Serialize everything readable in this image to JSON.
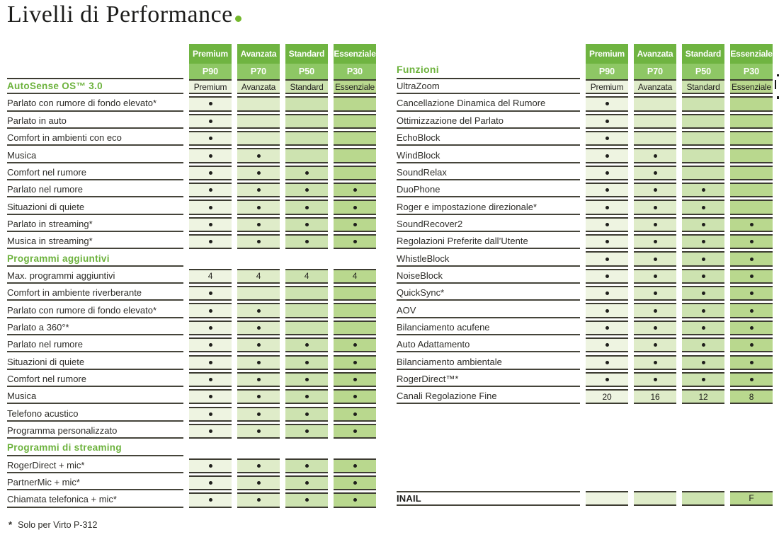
{
  "title": {
    "text": "Livelli di Performance"
  },
  "tiers": [
    {
      "name": "Premium",
      "code": "P90"
    },
    {
      "name": "Avanzata",
      "code": "P70"
    },
    {
      "name": "Standard",
      "code": "P50"
    },
    {
      "name": "Essenziale",
      "code": "P30"
    }
  ],
  "colors": {
    "accent": "#6cb23c",
    "brand_dot": "#74b82d",
    "header_top": "#6fb441",
    "header_bottom": "#8ec765",
    "columns": [
      "#eef4e1",
      "#dfecc9",
      "#cde3b0",
      "#b9d88e"
    ],
    "line": "#3c3b31",
    "label_line": "#45443a",
    "dot": "#1f1f1c"
  },
  "left_table": {
    "sections": [
      {
        "heading": "AutoSense OS™ 3.0",
        "heading_values": [
          "Premium",
          "Avanzata",
          "Standard",
          "Essenziale"
        ],
        "rows": [
          {
            "label": "Parlato con rumore di fondo elevato*",
            "cells": [
              "dot",
              "",
              "",
              ""
            ]
          },
          {
            "label": "Parlato in auto",
            "cells": [
              "dot",
              "",
              "",
              ""
            ]
          },
          {
            "label": "Comfort in ambienti con eco",
            "cells": [
              "dot",
              "",
              "",
              ""
            ]
          },
          {
            "label": "Musica",
            "cells": [
              "dot",
              "dot",
              "",
              ""
            ]
          },
          {
            "label": "Comfort nel rumore",
            "cells": [
              "dot",
              "dot",
              "dot",
              ""
            ]
          },
          {
            "label": "Parlato nel rumore",
            "cells": [
              "dot",
              "dot",
              "dot",
              "dot"
            ]
          },
          {
            "label": "Situazioni di quiete",
            "cells": [
              "dot",
              "dot",
              "dot",
              "dot"
            ]
          },
          {
            "label": "Parlato in streaming*",
            "cells": [
              "dot",
              "dot",
              "dot",
              "dot"
            ]
          },
          {
            "label": "Musica in streaming*",
            "cells": [
              "dot",
              "dot",
              "dot",
              "dot"
            ]
          }
        ]
      },
      {
        "heading": "Programmi aggiuntivi",
        "rows": [
          {
            "label": "Max. programmi aggiuntivi",
            "cells": [
              "4",
              "4",
              "4",
              "4"
            ]
          },
          {
            "label": "Comfort in ambiente riverberante",
            "cells": [
              "dot",
              "",
              "",
              ""
            ]
          },
          {
            "label": "Parlato con rumore di fondo elevato*",
            "cells": [
              "dot",
              "dot",
              "",
              ""
            ]
          },
          {
            "label": "Parlato a 360°*",
            "cells": [
              "dot",
              "dot",
              "",
              ""
            ]
          },
          {
            "label": "Parlato nel rumore",
            "cells": [
              "dot",
              "dot",
              "dot",
              "dot"
            ]
          },
          {
            "label": "Situazioni di quiete",
            "cells": [
              "dot",
              "dot",
              "dot",
              "dot"
            ]
          },
          {
            "label": "Comfort nel rumore",
            "cells": [
              "dot",
              "dot",
              "dot",
              "dot"
            ]
          },
          {
            "label": "Musica",
            "cells": [
              "dot",
              "dot",
              "dot",
              "dot"
            ]
          },
          {
            "label": "Telefono acustico",
            "cells": [
              "dot",
              "dot",
              "dot",
              "dot"
            ]
          },
          {
            "label": "Programma personalizzato",
            "cells": [
              "dot",
              "dot",
              "dot",
              "dot"
            ]
          }
        ]
      },
      {
        "heading": "Programmi di streaming",
        "rows": [
          {
            "label": "RogerDirect + mic*",
            "cells": [
              "dot",
              "dot",
              "dot",
              "dot"
            ]
          },
          {
            "label": "PartnerMic + mic*",
            "cells": [
              "dot",
              "dot",
              "dot",
              "dot"
            ]
          },
          {
            "label": "Chiamata telefonica + mic*",
            "cells": [
              "dot",
              "dot",
              "dot",
              "dot"
            ]
          }
        ]
      }
    ]
  },
  "right_table": {
    "heading": "Funzioni",
    "rows": [
      {
        "label": "UltraZoom",
        "cells": [
          "Premium",
          "Avanzata",
          "Standard",
          "Essenziale"
        ]
      },
      {
        "label": "Cancellazione Dinamica del Rumore",
        "cells": [
          "dot",
          "",
          "",
          ""
        ]
      },
      {
        "label": "Ottimizzazione del Parlato",
        "cells": [
          "dot",
          "",
          "",
          ""
        ]
      },
      {
        "label": "EchoBlock",
        "cells": [
          "dot",
          "",
          "",
          ""
        ]
      },
      {
        "label": "WindBlock",
        "cells": [
          "dot",
          "dot",
          "",
          ""
        ]
      },
      {
        "label": "SoundRelax",
        "cells": [
          "dot",
          "dot",
          "",
          ""
        ]
      },
      {
        "label": "DuoPhone",
        "cells": [
          "dot",
          "dot",
          "dot",
          ""
        ]
      },
      {
        "label": "Roger e impostazione direzionale*",
        "cells": [
          "dot",
          "dot",
          "dot",
          ""
        ]
      },
      {
        "label": "SoundRecover2",
        "cells": [
          "dot",
          "dot",
          "dot",
          "dot"
        ]
      },
      {
        "label": "Regolazioni Preferite dall’Utente",
        "cells": [
          "dot",
          "dot",
          "dot",
          "dot"
        ]
      },
      {
        "label": "WhistleBlock",
        "cells": [
          "dot",
          "dot",
          "dot",
          "dot"
        ]
      },
      {
        "label": "NoiseBlock",
        "cells": [
          "dot",
          "dot",
          "dot",
          "dot"
        ]
      },
      {
        "label": "QuickSync*",
        "cells": [
          "dot",
          "dot",
          "dot",
          "dot"
        ]
      },
      {
        "label": "AOV",
        "cells": [
          "dot",
          "dot",
          "dot",
          "dot"
        ]
      },
      {
        "label": "Bilanciamento acufene",
        "cells": [
          "dot",
          "dot",
          "dot",
          "dot"
        ]
      },
      {
        "label": "Auto Adattamento",
        "cells": [
          "dot",
          "dot",
          "dot",
          "dot"
        ]
      },
      {
        "label": "Bilanciamento ambientale",
        "cells": [
          "dot",
          "dot",
          "dot",
          "dot"
        ]
      },
      {
        "label": "RogerDirect™*",
        "cells": [
          "dot",
          "dot",
          "dot",
          "dot"
        ]
      },
      {
        "label": "Canali Regolazione Fine",
        "cells": [
          "20",
          "16",
          "12",
          "8"
        ]
      }
    ],
    "inail": {
      "label": "INAIL",
      "cells": [
        "",
        "",
        "",
        "F"
      ]
    }
  },
  "footnote": {
    "marker": "*",
    "text": "Solo per Virto P-312"
  }
}
